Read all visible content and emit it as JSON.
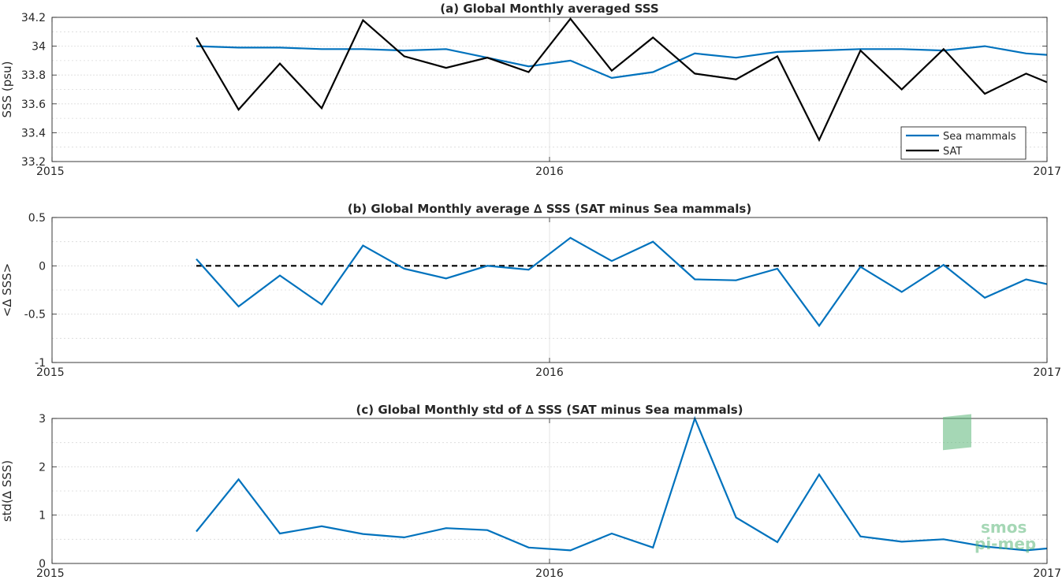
{
  "chart_data": [
    {
      "type": "line",
      "title": "(a) Global Monthly averaged SSS",
      "xlabel": "",
      "ylabel": "SSS (psu)",
      "xlim": [
        2015,
        2017
      ],
      "ylim": [
        33.2,
        34.2
      ],
      "x_ticks": [
        2015,
        2016,
        2017
      ],
      "y_ticks": [
        33.2,
        33.4,
        33.6,
        33.8,
        34,
        34.2
      ],
      "y_tick_labels": [
        "33.2",
        "33.4",
        "33.6",
        "33.8",
        "34",
        "34.2"
      ],
      "grid": true,
      "legend_position": "bottom-right",
      "x": [
        2015.29,
        2015.375,
        2015.458,
        2015.542,
        2015.625,
        2015.708,
        2015.792,
        2015.875,
        2015.958,
        2016.042,
        2016.125,
        2016.208,
        2016.292,
        2016.375,
        2016.458,
        2016.542,
        2016.625,
        2016.708,
        2016.792,
        2016.875,
        2016.958,
        2017.0
      ],
      "series": [
        {
          "name": "Sea mammals",
          "color": "#0072bd",
          "values": [
            34.0,
            33.99,
            33.99,
            33.98,
            33.98,
            33.97,
            33.98,
            33.92,
            33.86,
            33.9,
            33.78,
            33.82,
            33.95,
            33.92,
            33.96,
            33.97,
            33.98,
            33.98,
            33.97,
            34.0,
            33.95,
            33.94
          ]
        },
        {
          "name": "SAT",
          "color": "#000000",
          "values": [
            34.06,
            33.56,
            33.88,
            33.57,
            34.18,
            33.93,
            33.85,
            33.92,
            33.82,
            34.19,
            33.83,
            34.06,
            33.81,
            33.77,
            33.93,
            33.35,
            33.97,
            33.7,
            33.98,
            33.67,
            33.81,
            33.75
          ]
        }
      ]
    },
    {
      "type": "line",
      "title": "(b) Global Monthly average ∆ SSS (SAT minus Sea mammals)",
      "xlabel": "",
      "ylabel": "<∆ SSS>",
      "xlim": [
        2015,
        2017
      ],
      "ylim": [
        -1,
        0.5
      ],
      "x_ticks": [
        2015,
        2016,
        2017
      ],
      "y_ticks": [
        -1,
        -0.5,
        0,
        0.5
      ],
      "y_tick_labels": [
        "-1",
        "-0.5",
        "0",
        "0.5"
      ],
      "grid": true,
      "reference_line": {
        "y": 0,
        "style": "dashed",
        "color": "#000000"
      },
      "x": [
        2015.29,
        2015.375,
        2015.458,
        2015.542,
        2015.625,
        2015.708,
        2015.792,
        2015.875,
        2015.958,
        2016.042,
        2016.125,
        2016.208,
        2016.292,
        2016.375,
        2016.458,
        2016.542,
        2016.625,
        2016.708,
        2016.792,
        2016.875,
        2016.958,
        2017.0
      ],
      "series": [
        {
          "color": "#0072bd",
          "values": [
            0.07,
            -0.42,
            -0.1,
            -0.4,
            0.21,
            -0.03,
            -0.13,
            0.0,
            -0.04,
            0.29,
            0.05,
            0.25,
            -0.14,
            -0.15,
            -0.03,
            -0.62,
            -0.01,
            -0.27,
            0.01,
            -0.33,
            -0.14,
            -0.19
          ]
        }
      ]
    },
    {
      "type": "line",
      "title": "(c) Global Monthly std of ∆ SSS (SAT minus Sea mammals)",
      "xlabel": "",
      "ylabel": "std(∆ SSS)",
      "xlim": [
        2015,
        2017
      ],
      "ylim": [
        0,
        3
      ],
      "x_ticks": [
        2015,
        2016,
        2017
      ],
      "y_ticks": [
        0,
        1,
        2,
        3
      ],
      "y_tick_labels": [
        "0",
        "1",
        "2",
        "3"
      ],
      "grid": true,
      "x": [
        2015.29,
        2015.375,
        2015.458,
        2015.542,
        2015.625,
        2015.708,
        2015.792,
        2015.875,
        2015.958,
        2016.042,
        2016.125,
        2016.208,
        2016.292,
        2016.375,
        2016.458,
        2016.542,
        2016.625,
        2016.708,
        2016.792,
        2016.875,
        2016.958,
        2017.0
      ],
      "series": [
        {
          "color": "#0072bd",
          "values": [
            0.66,
            1.74,
            0.62,
            0.77,
            0.61,
            0.54,
            0.73,
            0.69,
            0.33,
            0.27,
            0.62,
            0.33,
            3.0,
            0.95,
            0.44,
            1.84,
            0.56,
            0.45,
            0.5,
            0.35,
            0.27,
            0.31
          ]
        }
      ]
    }
  ],
  "watermark": {
    "line1": "smos",
    "line2": "pi-mep",
    "color": "#5cb87a"
  }
}
